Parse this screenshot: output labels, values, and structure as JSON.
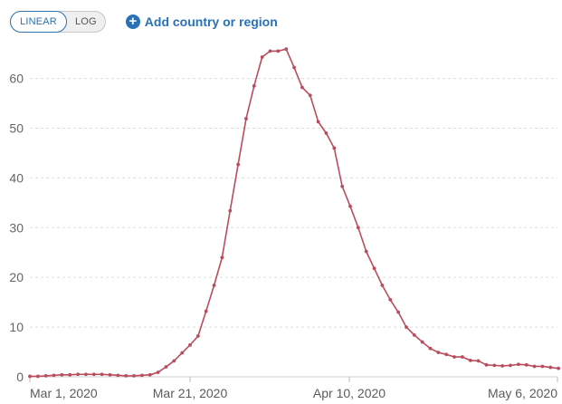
{
  "toolbar": {
    "linear_label": "LINEAR",
    "log_label": "LOG",
    "add_label": "Add country or region",
    "add_icon": "plus-circle-icon",
    "active_scale": "linear"
  },
  "colors": {
    "series": "#b94d5e",
    "accent": "#2872b7",
    "grid": "#dddddd"
  },
  "chart_data": {
    "type": "line",
    "title": "",
    "xlabel": "",
    "ylabel": "",
    "ylim": [
      0,
      66
    ],
    "yticks": [
      0,
      10,
      20,
      30,
      40,
      50,
      60
    ],
    "xtick_labels": [
      "Mar 1, 2020",
      "Mar 21, 2020",
      "Apr 10, 2020",
      "May 6, 2020"
    ],
    "grid": "horizontal dashed",
    "series": [
      {
        "color": "#b94d5e",
        "points": [
          [
            "2020-03-01",
            0.1
          ],
          [
            "2020-03-02",
            0.1
          ],
          [
            "2020-03-03",
            0.2
          ],
          [
            "2020-03-04",
            0.3
          ],
          [
            "2020-03-05",
            0.4
          ],
          [
            "2020-03-06",
            0.4
          ],
          [
            "2020-03-07",
            0.5
          ],
          [
            "2020-03-08",
            0.5
          ],
          [
            "2020-03-09",
            0.5
          ],
          [
            "2020-03-10",
            0.5
          ],
          [
            "2020-03-11",
            0.4
          ],
          [
            "2020-03-12",
            0.3
          ],
          [
            "2020-03-13",
            0.2
          ],
          [
            "2020-03-14",
            0.2
          ],
          [
            "2020-03-15",
            0.3
          ],
          [
            "2020-03-16",
            0.4
          ],
          [
            "2020-03-17",
            0.9
          ],
          [
            "2020-03-18",
            2.0
          ],
          [
            "2020-03-19",
            3.2
          ],
          [
            "2020-03-20",
            4.8
          ],
          [
            "2020-03-21",
            6.4
          ],
          [
            "2020-03-22",
            8.2
          ],
          [
            "2020-03-23",
            13.2
          ],
          [
            "2020-03-24",
            18.4
          ],
          [
            "2020-03-25",
            24.0
          ],
          [
            "2020-03-26",
            33.4
          ],
          [
            "2020-03-27",
            42.7
          ],
          [
            "2020-03-28",
            51.9
          ],
          [
            "2020-03-29",
            58.5
          ],
          [
            "2020-03-30",
            64.3
          ],
          [
            "2020-03-31",
            65.5
          ],
          [
            "2020-04-01",
            65.5
          ],
          [
            "2020-04-02",
            65.9
          ],
          [
            "2020-04-03",
            62.2
          ],
          [
            "2020-04-04",
            58.2
          ],
          [
            "2020-04-05",
            56.6
          ],
          [
            "2020-04-06",
            51.3
          ],
          [
            "2020-04-07",
            49.0
          ],
          [
            "2020-04-08",
            46.0
          ],
          [
            "2020-04-09",
            38.3
          ],
          [
            "2020-04-10",
            34.3
          ],
          [
            "2020-04-11",
            30.0
          ],
          [
            "2020-04-12",
            25.2
          ],
          [
            "2020-04-13",
            21.8
          ],
          [
            "2020-04-14",
            18.4
          ],
          [
            "2020-04-15",
            15.5
          ],
          [
            "2020-04-16",
            13.0
          ],
          [
            "2020-04-17",
            10.0
          ],
          [
            "2020-04-18",
            8.4
          ],
          [
            "2020-04-19",
            7.0
          ],
          [
            "2020-04-20",
            5.7
          ],
          [
            "2020-04-21",
            4.9
          ],
          [
            "2020-04-22",
            4.5
          ],
          [
            "2020-04-23",
            4.0
          ],
          [
            "2020-04-24",
            4.0
          ],
          [
            "2020-04-25",
            3.3
          ],
          [
            "2020-04-26",
            3.2
          ],
          [
            "2020-04-27",
            2.4
          ],
          [
            "2020-04-28",
            2.3
          ],
          [
            "2020-04-29",
            2.2
          ],
          [
            "2020-04-30",
            2.3
          ],
          [
            "2020-05-01",
            2.5
          ],
          [
            "2020-05-02",
            2.4
          ],
          [
            "2020-05-03",
            2.1
          ],
          [
            "2020-05-04",
            2.1
          ],
          [
            "2020-05-05",
            1.9
          ],
          [
            "2020-05-06",
            1.7
          ]
        ]
      }
    ]
  }
}
